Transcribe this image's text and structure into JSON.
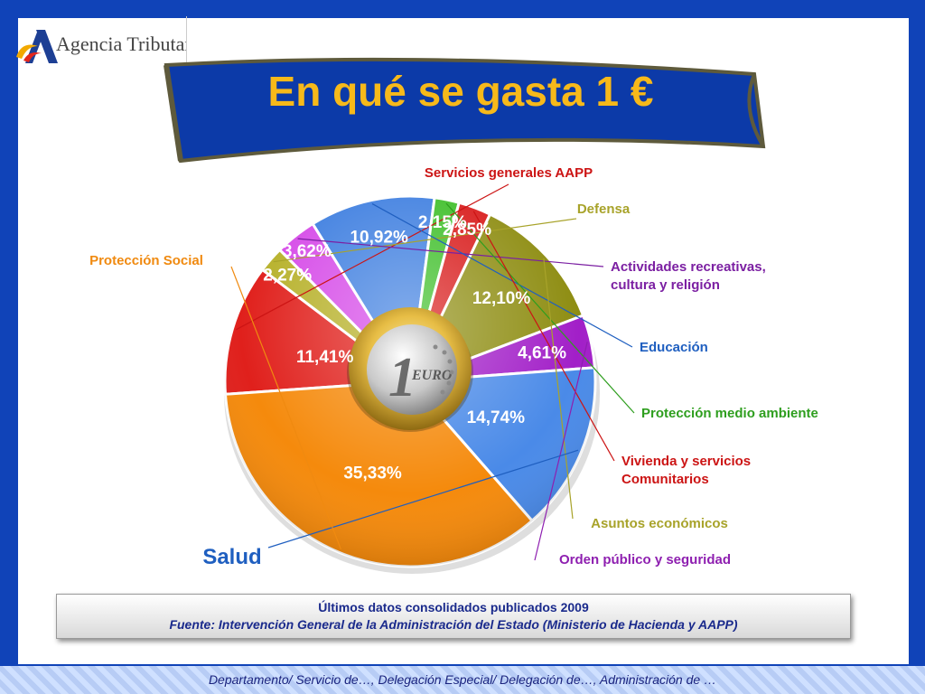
{
  "header": {
    "logo_text": "Agencia Tributaria",
    "title": "En qué se gasta 1 €"
  },
  "chart_data": {
    "type": "pie",
    "title": "En qué se gasta 1 €",
    "center_image": "one-euro-coin",
    "slices": [
      {
        "label": "Servicios generales AAPP",
        "value": 11.41,
        "value_label": "11,41%",
        "color": "#e0201c",
        "label_color": "#cc1414"
      },
      {
        "label": "Defensa",
        "value": 2.27,
        "value_label": "2,27%",
        "color": "#b7b12a",
        "label_color": "#a8a32a"
      },
      {
        "label": "Actividades recreativas, cultura y religión",
        "value": 3.62,
        "value_label": "3,62%",
        "color": "#d64be8",
        "label_color": "#7b1fa2"
      },
      {
        "label": "Educación",
        "value": 10.92,
        "value_label": "10,92%",
        "color": "#3f7fe0",
        "label_color": "#1f5fc0"
      },
      {
        "label": "Protección medio ambiente",
        "value": 2.15,
        "value_label": "2,15%",
        "color": "#3fbf2a",
        "label_color": "#2e9e1e"
      },
      {
        "label": "Vivienda y servicios Comunitarios",
        "value": 2.85,
        "value_label": "2,85%",
        "color": "#d81b1b",
        "label_color": "#cc1414"
      },
      {
        "label": "Asuntos económicos",
        "value": 12.1,
        "value_label": "12,10%",
        "color": "#8e8d12",
        "label_color": "#a8a32a"
      },
      {
        "label": "Orden público y seguridad",
        "value": 4.61,
        "value_label": "4,61%",
        "color": "#a21fc8",
        "label_color": "#8e1fb0"
      },
      {
        "label": "Salud",
        "value": 14.74,
        "value_label": "14,74%",
        "color": "#4a8ae8",
        "label_color": "#1f5fc0"
      },
      {
        "label": "Protección Social",
        "value": 35.33,
        "value_label": "35,33%",
        "color": "#f58a0c",
        "label_color": "#f08a10"
      }
    ]
  },
  "footnote": {
    "line1": "Últimos datos consolidados publicados 2009",
    "line2": "Fuente: Intervención General de la Administración del Estado (Ministerio de Hacienda y AAPP)"
  },
  "footer": {
    "text": "Departamento/ Servicio de…, Delegación Especial/ Delegación de…, Administración de …"
  }
}
